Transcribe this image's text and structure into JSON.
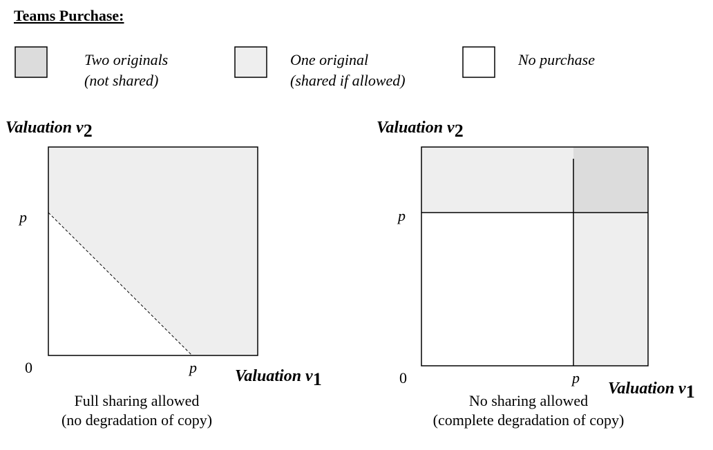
{
  "title": "Teams Purchase:",
  "legend": [
    {
      "lines": [
        "Two originals",
        "(not shared)"
      ]
    },
    {
      "lines": [
        "One original",
        "(shared if allowed)"
      ]
    },
    {
      "lines": [
        "No purchase"
      ]
    }
  ],
  "panels": [
    {
      "y_axis": {
        "label": "Valuation v",
        "subscript": "2"
      },
      "x_axis": {
        "label": "Valuation v",
        "subscript": "1"
      },
      "y_tick": "p",
      "origin": "0",
      "x_tick": "p",
      "caption": [
        "Full sharing allowed",
        "(no degradation of copy)"
      ]
    },
    {
      "y_axis": {
        "label": "Valuation v",
        "subscript": "2"
      },
      "x_axis": {
        "label": "Valuation v",
        "subscript": "1"
      },
      "y_tick": "p",
      "origin": "0",
      "x_tick": "p",
      "caption": [
        "No sharing allowed",
        "(complete degradation of copy)"
      ]
    }
  ]
}
